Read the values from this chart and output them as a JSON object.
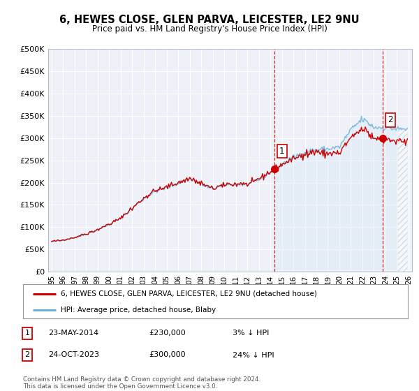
{
  "title": "6, HEWES CLOSE, GLEN PARVA, LEICESTER, LE2 9NU",
  "subtitle": "Price paid vs. HM Land Registry's House Price Index (HPI)",
  "ylabel_ticks": [
    "£0",
    "£50K",
    "£100K",
    "£150K",
    "£200K",
    "£250K",
    "£300K",
    "£350K",
    "£400K",
    "£450K",
    "£500K"
  ],
  "ytick_values": [
    0,
    50000,
    100000,
    150000,
    200000,
    250000,
    300000,
    350000,
    400000,
    450000,
    500000
  ],
  "xlim_start": 1994.7,
  "xlim_end": 2026.3,
  "ylim": [
    0,
    500000
  ],
  "transaction1": {
    "date_label": "23-MAY-2014",
    "price": 230000,
    "hpi_diff": "3% ↓ HPI",
    "year": 2014.38
  },
  "transaction2": {
    "date_label": "24-OCT-2023",
    "price": 300000,
    "hpi_diff": "24% ↓ HPI",
    "year": 2023.79
  },
  "legend_line1": "6, HEWES CLOSE, GLEN PARVA, LEICESTER, LE2 9NU (detached house)",
  "legend_line2": "HPI: Average price, detached house, Blaby",
  "footer": "Contains HM Land Registry data © Crown copyright and database right 2024.\nThis data is licensed under the Open Government Licence v3.0.",
  "hpi_color": "#6baed6",
  "hpi_fill_color": "#d6e8f5",
  "price_color": "#cc0000",
  "background_color": "#ffffff",
  "plot_bg_color": "#eef2f8",
  "grid_color": "#ffffff",
  "vline_color": "#cc0000",
  "xtick_labels": [
    "95",
    "96",
    "97",
    "98",
    "99",
    "00",
    "01",
    "02",
    "03",
    "04",
    "05",
    "06",
    "07",
    "08",
    "09",
    "10",
    "11",
    "12",
    "13",
    "14",
    "15",
    "16",
    "17",
    "18",
    "19",
    "20",
    "21",
    "22",
    "23",
    "24",
    "25",
    "26"
  ],
  "xtick_years": [
    1995,
    1996,
    1997,
    1998,
    1999,
    2000,
    2001,
    2002,
    2003,
    2004,
    2005,
    2006,
    2007,
    2008,
    2009,
    2010,
    2011,
    2012,
    2013,
    2014,
    2015,
    2016,
    2017,
    2018,
    2019,
    2020,
    2021,
    2022,
    2023,
    2024,
    2025,
    2026
  ]
}
